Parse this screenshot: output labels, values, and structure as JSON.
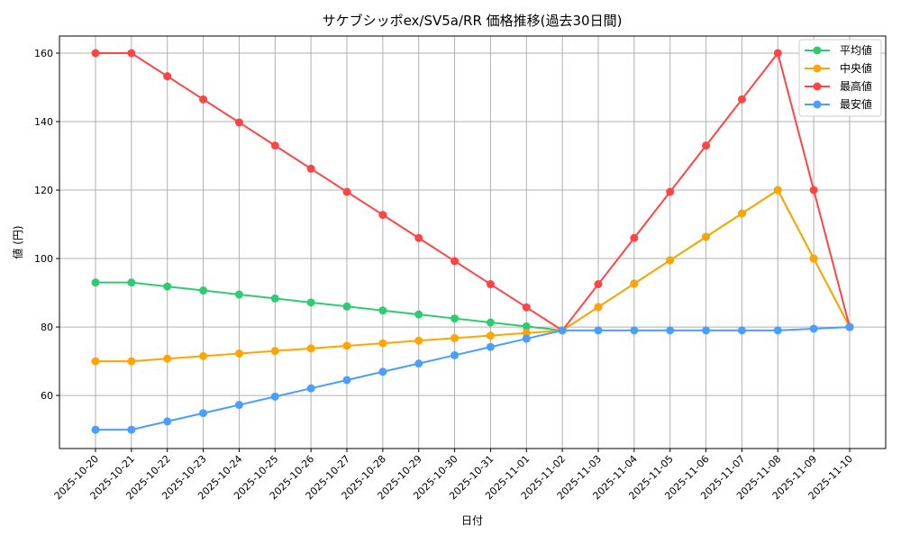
{
  "chart_data": {
    "type": "line",
    "title": "サケブシッポex/SV5a/RR 価格推移(過去30日間)",
    "xlabel": "日付",
    "ylabel": "値 (円)",
    "ylim": [
      44.5,
      165
    ],
    "yticks": [
      60,
      80,
      100,
      120,
      140,
      160
    ],
    "grid": true,
    "legend_position": "top-right",
    "x": [
      "2025-10-20",
      "2025-10-21",
      "2025-10-22",
      "2025-10-23",
      "2025-10-24",
      "2025-10-25",
      "2025-10-26",
      "2025-10-27",
      "2025-10-28",
      "2025-10-29",
      "2025-10-30",
      "2025-10-31",
      "2025-11-01",
      "2025-11-02",
      "2025-11-03",
      "2025-11-04",
      "2025-11-05",
      "2025-11-06",
      "2025-11-07",
      "2025-11-08",
      "2025-11-09",
      "2025-11-10"
    ],
    "series": [
      {
        "name": "平均値",
        "color": "#2ecc71",
        "values": [
          93,
          93,
          91.83,
          90.67,
          89.5,
          88.33,
          87.17,
          86,
          84.83,
          83.67,
          82.5,
          81.33,
          80.17,
          79,
          85.83,
          92.67,
          99.5,
          106.33,
          113.17,
          120,
          100,
          80
        ]
      },
      {
        "name": "中央値",
        "color": "#ffa500",
        "values": [
          70,
          70,
          70.75,
          71.5,
          72.25,
          73,
          73.75,
          74.5,
          75.25,
          76,
          76.75,
          77.5,
          78.25,
          79,
          85.83,
          92.67,
          99.5,
          106.33,
          113.17,
          120,
          100,
          80
        ]
      },
      {
        "name": "最高値",
        "color": "#ff4444",
        "values": [
          160,
          160,
          153.25,
          146.5,
          139.75,
          133,
          126.25,
          119.5,
          112.75,
          106,
          99.25,
          92.5,
          85.75,
          79,
          92.5,
          106,
          119.5,
          133,
          146.5,
          160,
          120,
          80
        ]
      },
      {
        "name": "最安値",
        "color": "#4a9eff",
        "values": [
          50,
          50,
          52.42,
          54.83,
          57.25,
          59.67,
          62.08,
          64.5,
          66.92,
          69.33,
          71.75,
          74.17,
          76.58,
          79,
          79,
          79,
          79,
          79,
          79,
          79,
          79.5,
          80
        ]
      }
    ]
  }
}
